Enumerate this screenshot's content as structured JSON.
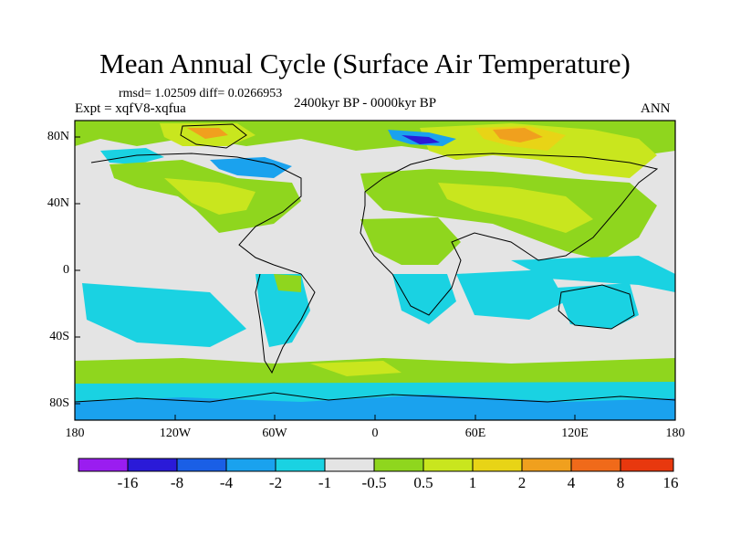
{
  "title": "Mean Annual Cycle (Surface Air Temperature)",
  "stats": "rmsd= 1.02509 diff= 0.0266953",
  "experiment": "Expt = xqfV8-xqfua",
  "period": "2400kyr BP - 0000kyr BP",
  "season": "ANN",
  "y_ticks": [
    "80N",
    "40N",
    "0",
    "40S",
    "80S"
  ],
  "x_ticks": [
    "180",
    "120W",
    "60W",
    "0",
    "60E",
    "120E",
    "180"
  ],
  "colorbar": {
    "colors": [
      "#9a1df0",
      "#2a1ad8",
      "#1a5fe6",
      "#1aa2ee",
      "#1ad2e2",
      "#e4e4e4",
      "#8fd61e",
      "#c9e61e",
      "#e8d416",
      "#f0a01e",
      "#f06a1a",
      "#e8380e"
    ],
    "labels": [
      "-16",
      "-8",
      "-4",
      "-2",
      "-1",
      "-0.5",
      "0.5",
      "1",
      "2",
      "4",
      "8",
      "16"
    ]
  },
  "colors": {
    "neutral": "#e4e4e4",
    "land_warm": "#8fd61e",
    "land_warmer": "#c9e61e",
    "warm3": "#e8d416",
    "warm4": "#f0a01e",
    "warm5": "#f06a1a",
    "cool1": "#1ad2e2",
    "cool2": "#1aa2ee",
    "cool3": "#1a5fe6",
    "cool4": "#2a1ad8"
  }
}
